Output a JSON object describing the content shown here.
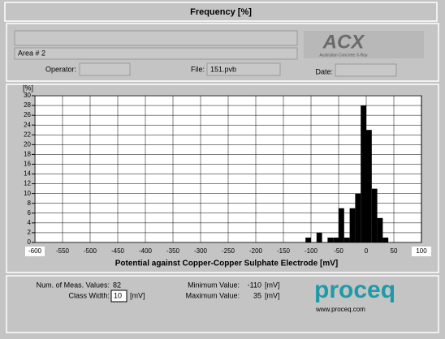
{
  "header": {
    "title": "Frequency [%]"
  },
  "info": {
    "area": "Area # 2",
    "operator_label": "Operator:",
    "file_label": "File:",
    "file": "151.pvb",
    "date_label": "Date:"
  },
  "logo": {
    "name": "ACX",
    "subtitle": "Australian Concrete X-Ray"
  },
  "chart_data": {
    "type": "histogram",
    "y_label": "[%]",
    "x_label": "Potential against Copper-Copper Sulphate Electrode [mV]",
    "bins": [
      -110,
      -100,
      -90,
      -80,
      -70,
      -60,
      -50,
      -40,
      -30,
      -20,
      -10,
      0,
      10,
      20,
      30,
      40
    ],
    "values": [
      1,
      0,
      2,
      0,
      1,
      1,
      7,
      1,
      7,
      10,
      28,
      23,
      11,
      5,
      1
    ],
    "color": "#000000",
    "grid": true,
    "xlim": [
      -600,
      100
    ],
    "xticks": [
      -600,
      -550,
      -500,
      -450,
      -400,
      -350,
      -300,
      -250,
      -200,
      -150,
      -100,
      -50,
      0,
      50,
      100
    ],
    "ylim": [
      0,
      30
    ],
    "yticks": [
      0,
      2,
      4,
      6,
      8,
      10,
      12,
      14,
      16,
      18,
      20,
      22,
      24,
      26,
      28,
      30
    ]
  },
  "stats": {
    "count_label": "Num. of Meas. Values:",
    "count": 82,
    "class_width_label": "Class Width:",
    "class_width": 10,
    "class_width_unit": "[mV]",
    "min_label": "Minimum Value:",
    "min": -110,
    "min_unit": "[mV]",
    "max_label": "Maximum Value:",
    "max": 35,
    "max_unit": "[mV]",
    "brand": "proceq",
    "url": "www.proceq.com"
  }
}
